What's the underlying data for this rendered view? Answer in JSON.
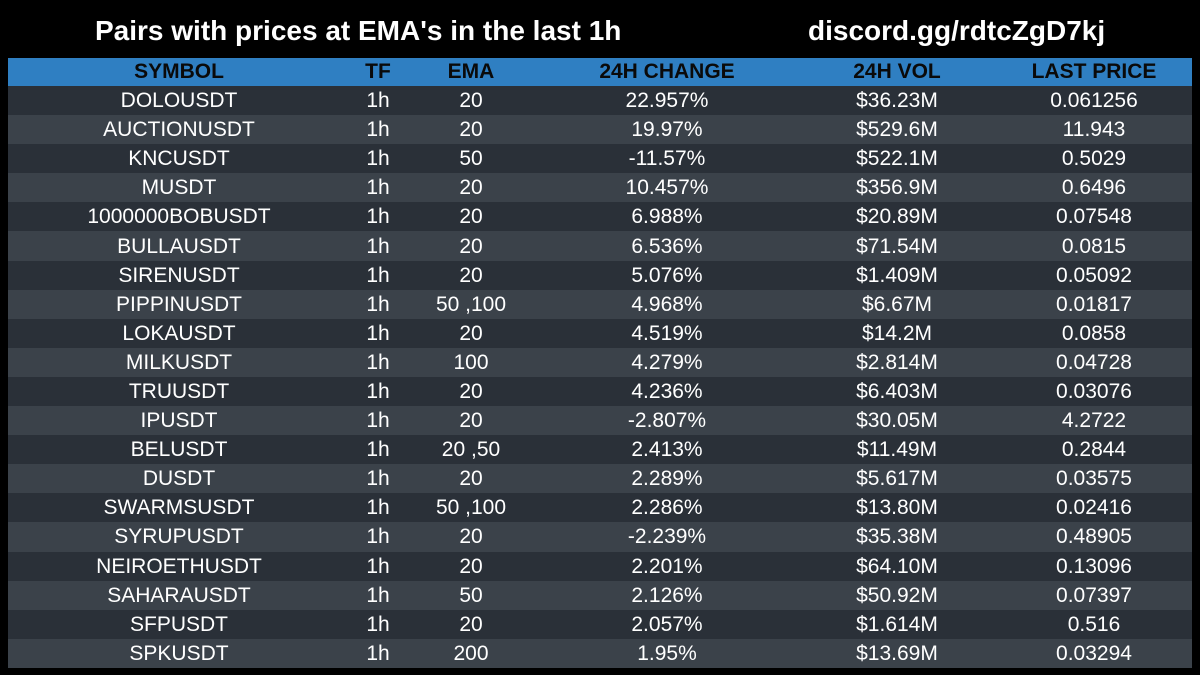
{
  "header": {
    "title": "Pairs with prices at EMA's in the last 1h",
    "link": "discord.gg/rdtcZgD7kj"
  },
  "table": {
    "columns": [
      "SYMBOL",
      "TF",
      "EMA",
      "24H CHANGE",
      "24H VOL",
      "LAST PRICE"
    ],
    "rows": [
      [
        "DOLOUSDT",
        "1h",
        "20",
        "22.957%",
        "$36.23M",
        "0.061256"
      ],
      [
        "AUCTIONUSDT",
        "1h",
        "20",
        "19.97%",
        "$529.6M",
        "11.943"
      ],
      [
        "KNCUSDT",
        "1h",
        "50",
        "-11.57%",
        "$522.1M",
        "0.5029"
      ],
      [
        "MUSDT",
        "1h",
        "20",
        "10.457%",
        "$356.9M",
        "0.6496"
      ],
      [
        "1000000BOBUSDT",
        "1h",
        "20",
        "6.988%",
        "$20.89M",
        "0.07548"
      ],
      [
        "BULLAUSDT",
        "1h",
        "20",
        "6.536%",
        "$71.54M",
        "0.0815"
      ],
      [
        "SIRENUSDT",
        "1h",
        "20",
        "5.076%",
        "$1.409M",
        "0.05092"
      ],
      [
        "PIPPINUSDT",
        "1h",
        "50 ,100",
        "4.968%",
        "$6.67M",
        "0.01817"
      ],
      [
        "LOKAUSDT",
        "1h",
        "20",
        "4.519%",
        "$14.2M",
        "0.0858"
      ],
      [
        "MILKUSDT",
        "1h",
        "100",
        "4.279%",
        "$2.814M",
        "0.04728"
      ],
      [
        "TRUUSDT",
        "1h",
        "20",
        "4.236%",
        "$6.403M",
        "0.03076"
      ],
      [
        "IPUSDT",
        "1h",
        "20",
        "-2.807%",
        "$30.05M",
        "4.2722"
      ],
      [
        "BELUSDT",
        "1h",
        "20 ,50",
        "2.413%",
        "$11.49M",
        "0.2844"
      ],
      [
        "DUSDT",
        "1h",
        "20",
        "2.289%",
        "$5.617M",
        "0.03575"
      ],
      [
        "SWARMSUSDT",
        "1h",
        "50 ,100",
        "2.286%",
        "$13.80M",
        "0.02416"
      ],
      [
        "SYRUPUSDT",
        "1h",
        "20",
        "-2.239%",
        "$35.38M",
        "0.48905"
      ],
      [
        "NEIROETHUSDT",
        "1h",
        "20",
        "2.201%",
        "$64.10M",
        "0.13096"
      ],
      [
        "SAHARAUSDT",
        "1h",
        "50",
        "2.126%",
        "$50.92M",
        "0.07397"
      ],
      [
        "SFPUSDT",
        "1h",
        "20",
        "2.057%",
        "$1.614M",
        "0.516"
      ],
      [
        "SPKUSDT",
        "1h",
        "200",
        "1.95%",
        "$13.69M",
        "0.03294"
      ]
    ]
  },
  "colors": {
    "background": "#000000",
    "header_row": "#2f7fc2",
    "row_odd": "#2a3038",
    "row_even": "#3b424a",
    "text": "#ffffff"
  }
}
